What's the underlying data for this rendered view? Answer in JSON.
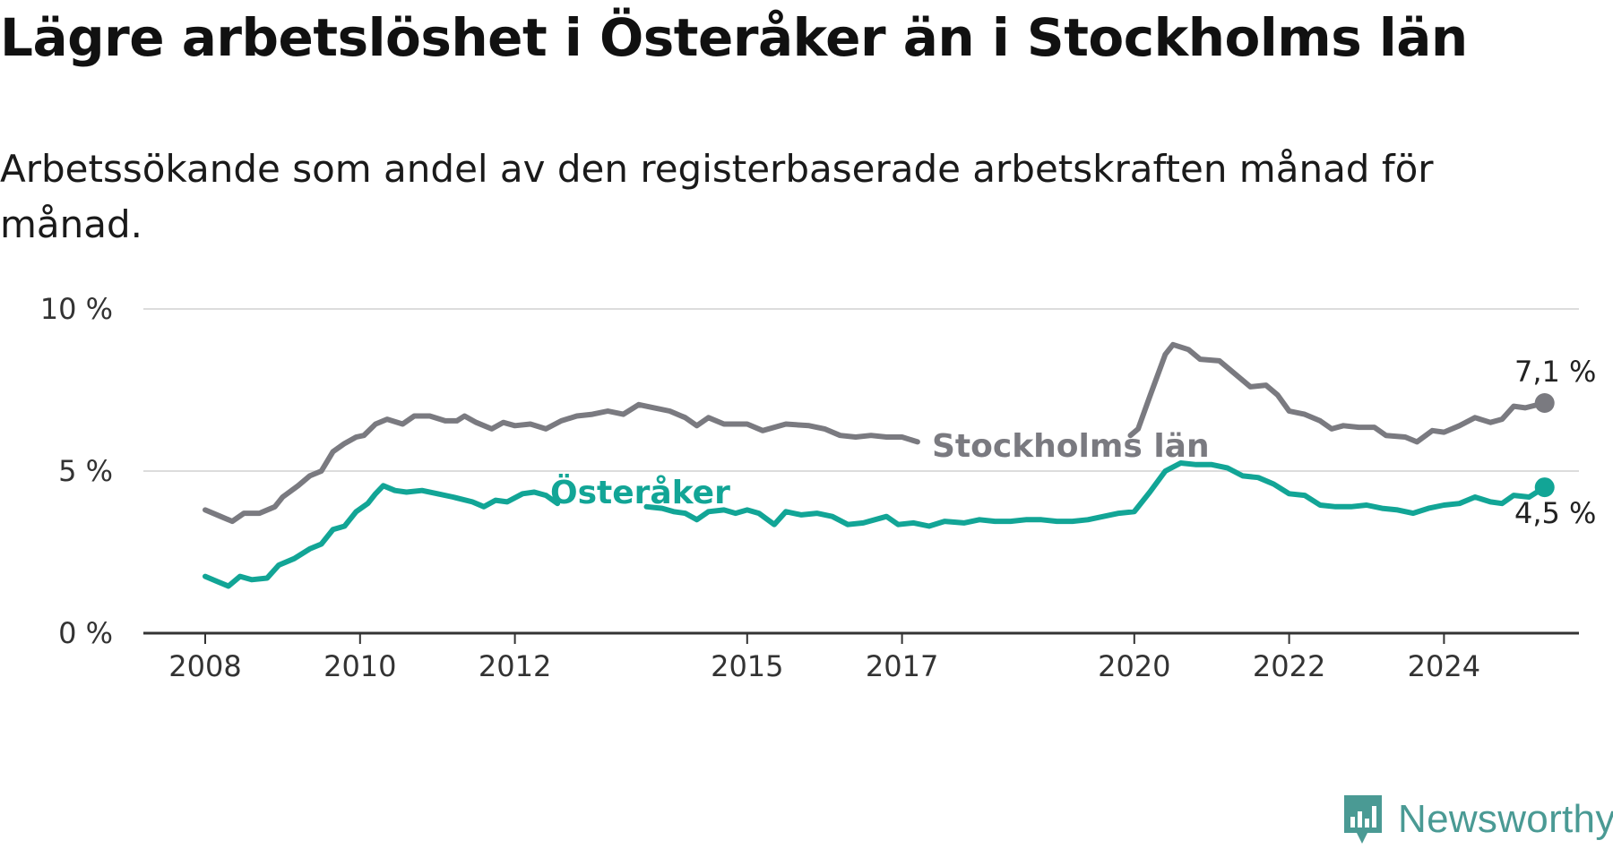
{
  "title": "Lägre arbetslöshet i Österåker än i Stockholms län",
  "subtitle": "Arbetssökande som andel av den registerbaserade arbetskraften månad för månad.",
  "brand": {
    "name": "Newsworthy",
    "icon": "newsworthy-logo-icon",
    "color": "#4a9a94"
  },
  "chart_data": {
    "type": "line",
    "ylim": [
      0,
      10
    ],
    "xlim": [
      2007.5,
      2025.8
    ],
    "y_ticks": [
      0,
      5,
      10
    ],
    "y_tick_labels": [
      "0 %",
      "5 %",
      "10 %"
    ],
    "x_ticks": [
      2008,
      2010,
      2012,
      2015,
      2017,
      2020,
      2022,
      2024
    ],
    "x_tick_labels": [
      "2008",
      "2010",
      "2012",
      "2015",
      "2017",
      "2020",
      "2022",
      "2024"
    ],
    "grid": true,
    "legend": "inline labels",
    "series": [
      {
        "name": "Stockholms län",
        "color": "#7a7a80",
        "end_label": "7,1 %",
        "points": [
          [
            2008.0,
            3.8
          ],
          [
            2008.2,
            3.6
          ],
          [
            2008.35,
            3.45
          ],
          [
            2008.5,
            3.7
          ],
          [
            2008.7,
            3.7
          ],
          [
            2008.9,
            3.9
          ],
          [
            2009.0,
            4.2
          ],
          [
            2009.2,
            4.55
          ],
          [
            2009.35,
            4.85
          ],
          [
            2009.5,
            5.0
          ],
          [
            2009.65,
            5.6
          ],
          [
            2009.8,
            5.85
          ],
          [
            2009.95,
            6.05
          ],
          [
            2010.05,
            6.1
          ],
          [
            2010.2,
            6.45
          ],
          [
            2010.35,
            6.6
          ],
          [
            2010.55,
            6.45
          ],
          [
            2010.7,
            6.7
          ],
          [
            2010.9,
            6.7
          ],
          [
            2011.1,
            6.55
          ],
          [
            2011.25,
            6.55
          ],
          [
            2011.35,
            6.7
          ],
          [
            2011.5,
            6.5
          ],
          [
            2011.7,
            6.3
          ],
          [
            2011.85,
            6.5
          ],
          [
            2012.0,
            6.4
          ],
          [
            2012.2,
            6.45
          ],
          [
            2012.4,
            6.3
          ],
          [
            2012.6,
            6.55
          ],
          [
            2012.8,
            6.7
          ],
          [
            2013.0,
            6.75
          ],
          [
            2013.2,
            6.85
          ],
          [
            2013.4,
            6.75
          ],
          [
            2013.6,
            7.05
          ],
          [
            2013.8,
            6.95
          ],
          [
            2014.0,
            6.85
          ],
          [
            2014.2,
            6.65
          ],
          [
            2014.35,
            6.4
          ],
          [
            2014.5,
            6.65
          ],
          [
            2014.7,
            6.45
          ],
          [
            2015.0,
            6.45
          ],
          [
            2015.2,
            6.25
          ],
          [
            2015.5,
            6.45
          ],
          [
            2015.8,
            6.4
          ],
          [
            2016.0,
            6.3
          ],
          [
            2016.2,
            6.1
          ],
          [
            2016.4,
            6.05
          ],
          [
            2016.6,
            6.1
          ],
          [
            2016.8,
            6.05
          ],
          [
            2017.0,
            6.05
          ],
          [
            2017.2,
            5.9
          ]
        ],
        "points_b": [
          [
            2019.95,
            6.1
          ],
          [
            2020.05,
            6.3
          ],
          [
            2020.2,
            7.3
          ],
          [
            2020.4,
            8.6
          ],
          [
            2020.5,
            8.9
          ],
          [
            2020.7,
            8.75
          ],
          [
            2020.85,
            8.45
          ],
          [
            2021.1,
            8.4
          ],
          [
            2021.3,
            8.0
          ],
          [
            2021.5,
            7.6
          ],
          [
            2021.7,
            7.65
          ],
          [
            2021.85,
            7.35
          ],
          [
            2022.0,
            6.85
          ],
          [
            2022.2,
            6.75
          ],
          [
            2022.4,
            6.55
          ],
          [
            2022.55,
            6.3
          ],
          [
            2022.7,
            6.4
          ],
          [
            2022.9,
            6.35
          ],
          [
            2023.1,
            6.35
          ],
          [
            2023.25,
            6.1
          ],
          [
            2023.5,
            6.05
          ],
          [
            2023.65,
            5.9
          ],
          [
            2023.85,
            6.25
          ],
          [
            2024.0,
            6.2
          ],
          [
            2024.2,
            6.4
          ],
          [
            2024.4,
            6.65
          ],
          [
            2024.6,
            6.5
          ],
          [
            2024.75,
            6.6
          ],
          [
            2024.9,
            7.0
          ],
          [
            2025.05,
            6.95
          ],
          [
            2025.3,
            7.1
          ]
        ]
      },
      {
        "name": "Österåker",
        "color": "#12a596",
        "end_label": "4,5 %",
        "points": [
          [
            2008.0,
            1.75
          ],
          [
            2008.15,
            1.6
          ],
          [
            2008.3,
            1.45
          ],
          [
            2008.45,
            1.75
          ],
          [
            2008.6,
            1.65
          ],
          [
            2008.8,
            1.7
          ],
          [
            2008.95,
            2.1
          ],
          [
            2009.15,
            2.3
          ],
          [
            2009.35,
            2.6
          ],
          [
            2009.5,
            2.75
          ],
          [
            2009.65,
            3.2
          ],
          [
            2009.8,
            3.3
          ],
          [
            2009.95,
            3.75
          ],
          [
            2010.1,
            4.0
          ],
          [
            2010.2,
            4.3
          ],
          [
            2010.3,
            4.55
          ],
          [
            2010.45,
            4.4
          ],
          [
            2010.6,
            4.35
          ],
          [
            2010.8,
            4.4
          ],
          [
            2011.0,
            4.3
          ],
          [
            2011.2,
            4.2
          ],
          [
            2011.45,
            4.05
          ],
          [
            2011.6,
            3.9
          ],
          [
            2011.75,
            4.1
          ],
          [
            2011.9,
            4.05
          ],
          [
            2012.1,
            4.3
          ],
          [
            2012.25,
            4.35
          ],
          [
            2012.4,
            4.25
          ],
          [
            2012.55,
            4.0
          ]
        ],
        "points_b": [
          [
            2013.7,
            3.9
          ],
          [
            2013.9,
            3.85
          ],
          [
            2014.05,
            3.75
          ],
          [
            2014.2,
            3.7
          ],
          [
            2014.35,
            3.5
          ],
          [
            2014.5,
            3.75
          ],
          [
            2014.7,
            3.8
          ],
          [
            2014.85,
            3.7
          ],
          [
            2015.0,
            3.8
          ],
          [
            2015.15,
            3.7
          ],
          [
            2015.35,
            3.35
          ],
          [
            2015.5,
            3.75
          ],
          [
            2015.7,
            3.65
          ],
          [
            2015.9,
            3.7
          ],
          [
            2016.1,
            3.6
          ],
          [
            2016.3,
            3.35
          ],
          [
            2016.5,
            3.4
          ],
          [
            2016.8,
            3.6
          ],
          [
            2016.95,
            3.35
          ],
          [
            2017.15,
            3.4
          ],
          [
            2017.35,
            3.3
          ],
          [
            2017.55,
            3.45
          ],
          [
            2017.8,
            3.4
          ],
          [
            2018.0,
            3.5
          ],
          [
            2018.2,
            3.45
          ],
          [
            2018.4,
            3.45
          ],
          [
            2018.6,
            3.5
          ],
          [
            2018.8,
            3.5
          ],
          [
            2019.0,
            3.45
          ],
          [
            2019.2,
            3.45
          ],
          [
            2019.4,
            3.5
          ],
          [
            2019.6,
            3.6
          ],
          [
            2019.8,
            3.7
          ],
          [
            2020.0,
            3.75
          ],
          [
            2020.2,
            4.35
          ],
          [
            2020.4,
            5.0
          ],
          [
            2020.6,
            5.25
          ],
          [
            2020.8,
            5.2
          ],
          [
            2021.0,
            5.2
          ],
          [
            2021.2,
            5.1
          ],
          [
            2021.4,
            4.85
          ],
          [
            2021.6,
            4.8
          ],
          [
            2021.8,
            4.6
          ],
          [
            2022.0,
            4.3
          ],
          [
            2022.2,
            4.25
          ],
          [
            2022.4,
            3.95
          ],
          [
            2022.6,
            3.9
          ],
          [
            2022.8,
            3.9
          ],
          [
            2023.0,
            3.95
          ],
          [
            2023.2,
            3.85
          ],
          [
            2023.4,
            3.8
          ],
          [
            2023.6,
            3.7
          ],
          [
            2023.8,
            3.85
          ],
          [
            2024.0,
            3.95
          ],
          [
            2024.2,
            4.0
          ],
          [
            2024.4,
            4.2
          ],
          [
            2024.6,
            4.05
          ],
          [
            2024.75,
            4.0
          ],
          [
            2024.9,
            4.25
          ],
          [
            2025.1,
            4.2
          ],
          [
            2025.3,
            4.5
          ]
        ]
      }
    ]
  }
}
